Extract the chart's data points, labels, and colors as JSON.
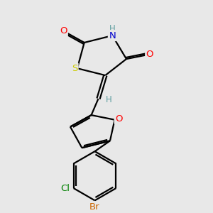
{
  "background_color": "#e8e8e8",
  "bond_color": "#000000",
  "bond_width": 1.6,
  "atom_colors": {
    "O": "#ff0000",
    "N": "#0000cd",
    "S": "#cccc00",
    "Br": "#cc6600",
    "Cl": "#008000",
    "H": "#5f9ea0",
    "C": "#000000"
  },
  "font_size": 8.5,
  "fig_width": 3.0,
  "fig_height": 3.0,
  "dpi": 100
}
